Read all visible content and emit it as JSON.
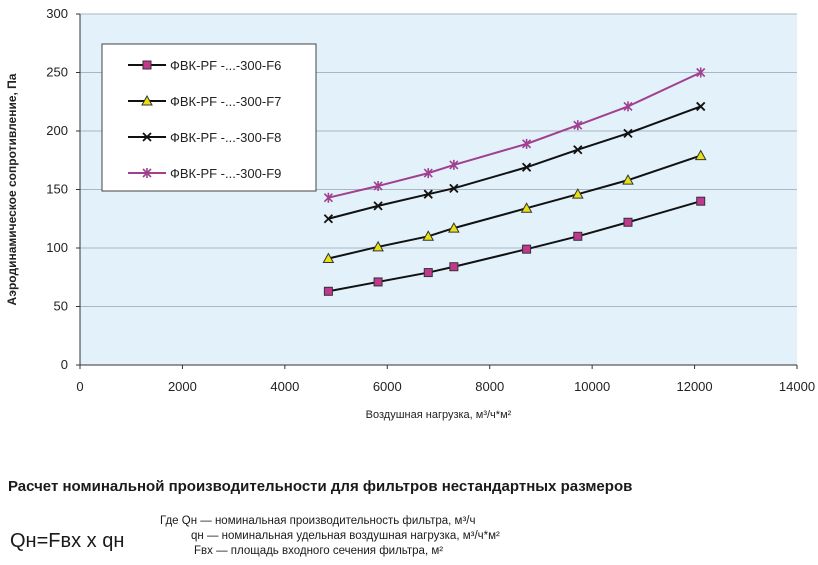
{
  "chart_data": {
    "type": "line",
    "title": "",
    "xlabel": "Воздушная нагрузка, м³/ч*м²",
    "ylabel": "Аэродинамическое сопротивление, Па",
    "xlim": [
      0,
      14000
    ],
    "ylim": [
      0,
      300
    ],
    "xticks": [
      "0",
      "2000",
      "4000",
      "6000",
      "8000",
      "10000",
      "12000",
      "14000"
    ],
    "yticks": [
      "0",
      "50",
      "100",
      "150",
      "200",
      "250",
      "300"
    ],
    "grid": "horizontal",
    "legend_position": "top-left",
    "x": [
      4850,
      5820,
      6800,
      7300,
      8720,
      9720,
      10700,
      12120
    ],
    "series": [
      {
        "name": "ФВК-PF -...-300-F6",
        "marker": "square",
        "color": "#c2388f",
        "values": [
          63,
          71,
          79,
          84,
          99,
          110,
          122,
          140
        ]
      },
      {
        "name": "ФВК-PF -...-300-F7",
        "marker": "triangle",
        "color": "#e8e010",
        "values": [
          91,
          101,
          110,
          117,
          134,
          146,
          158,
          179
        ]
      },
      {
        "name": "ФВК-PF -...-300-F8",
        "marker": "x",
        "color": "#111111",
        "values": [
          125,
          136,
          146,
          151,
          169,
          184,
          198,
          221
        ]
      },
      {
        "name": "ФВК-PF -...-300-F9",
        "marker": "star",
        "color": "#a0408f",
        "values": [
          143,
          153,
          164,
          171,
          189,
          205,
          221,
          250
        ]
      }
    ]
  },
  "section": {
    "heading": "Расчет номинальной производительности для фильтров нестандартных размеров",
    "formula": "Qн=Fвх х qн",
    "definitions": [
      "Где Qн — номинальная производительность фильтра, м³/ч",
      "qн — номинальная удельная воздушная нагрузка, м³/ч*м²",
      "Fвх — площадь входного сечения фильтра, м²"
    ]
  }
}
